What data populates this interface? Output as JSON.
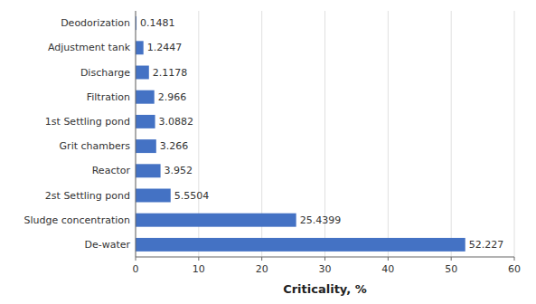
{
  "chart_data": {
    "type": "bar",
    "orientation": "horizontal",
    "categories": [
      "De-water",
      "Sludge concentration",
      "2st Settling pond",
      "Reactor",
      "Grit chambers",
      "1st Settling pond",
      "Filtration",
      "Discharge",
      "Adjustment tank",
      "Deodorization"
    ],
    "values": [
      52.227,
      25.4399,
      5.5504,
      3.952,
      3.266,
      3.0882,
      2.966,
      2.1178,
      1.2447,
      0.1481
    ],
    "color": "#4472c4",
    "xlabel": "Criticality, %",
    "xlim": [
      0,
      60
    ],
    "xticks": [
      0,
      10,
      20,
      30,
      40,
      50,
      60
    ],
    "grid": true,
    "data_labels": true
  }
}
